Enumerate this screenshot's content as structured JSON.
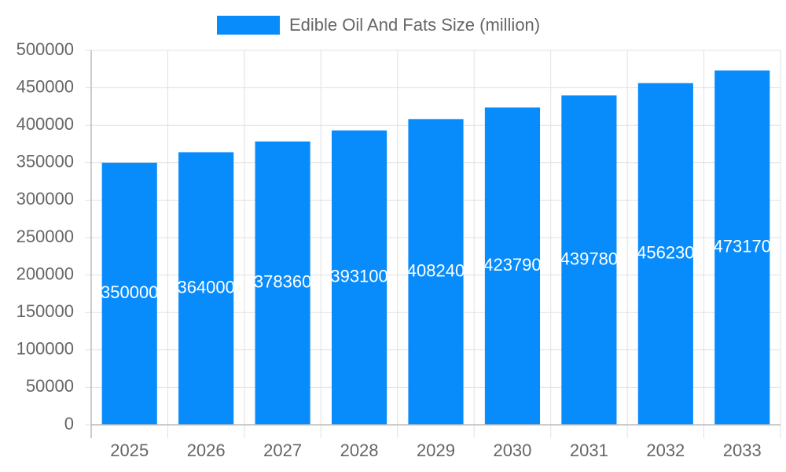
{
  "chart_data": {
    "type": "bar",
    "categories": [
      "2025",
      "2026",
      "2027",
      "2028",
      "2029",
      "2030",
      "2031",
      "2032",
      "2033"
    ],
    "series": [
      {
        "name": "Edible Oil And Fats Size (million)",
        "color": "#088cfc",
        "values": [
          350000,
          364000,
          378360,
          393100,
          408240,
          423790,
          439780,
          456230,
          473170
        ]
      }
    ],
    "ylim": [
      0,
      500000
    ],
    "yticks": [
      0,
      50000,
      100000,
      150000,
      200000,
      250000,
      300000,
      350000,
      400000,
      450000,
      500000
    ],
    "grid": true,
    "legend": "top",
    "data_labels": true
  }
}
